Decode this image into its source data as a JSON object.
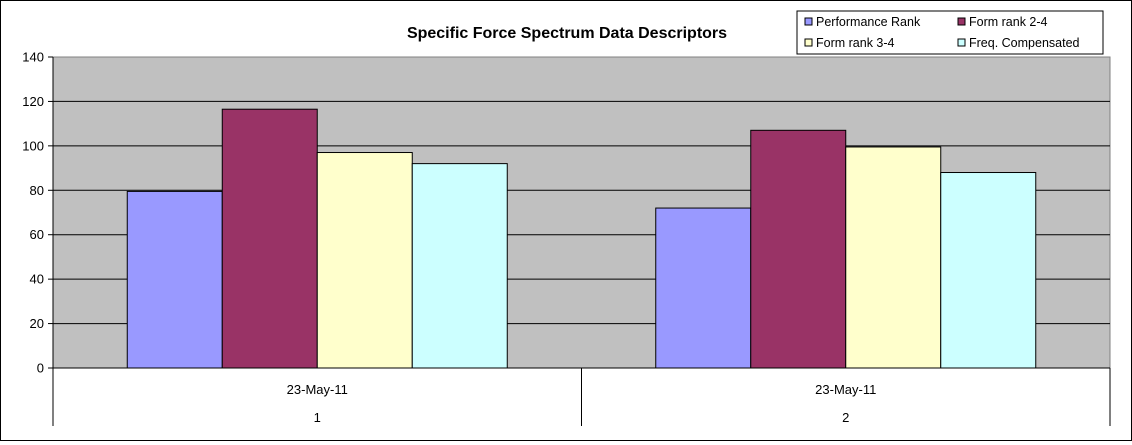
{
  "chart_data": {
    "type": "bar",
    "title": "Specific Force Spectrum Data Descriptors",
    "xlabel": "",
    "ylabel": "",
    "ylim": [
      0,
      140
    ],
    "yticks": [
      0,
      20,
      40,
      60,
      80,
      100,
      120,
      140
    ],
    "grid": true,
    "legend_position": "top-right",
    "categories": [
      {
        "date": "23-May-11",
        "index": "1"
      },
      {
        "date": "23-May-11",
        "index": "2"
      }
    ],
    "series": [
      {
        "name": "Performance Rank",
        "color": "#9999FF",
        "values": [
          79.5,
          72
        ]
      },
      {
        "name": "Form rank 2-4",
        "color": "#993366",
        "values": [
          116.5,
          107
        ]
      },
      {
        "name": "Form rank 3-4",
        "color": "#FFFFCC",
        "values": [
          97,
          99.5
        ]
      },
      {
        "name": "Freq. Compensated",
        "color": "#CCFFFF",
        "values": [
          92,
          88
        ]
      }
    ],
    "plot_background": "#C0C0C0"
  }
}
